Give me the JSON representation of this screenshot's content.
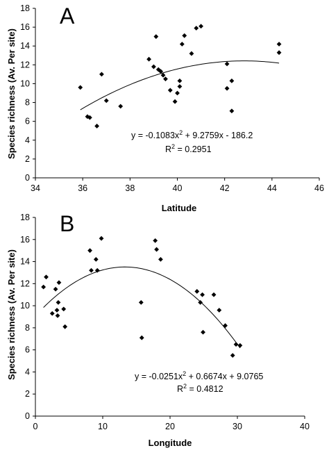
{
  "chart_data": [
    {
      "panel": "A",
      "type": "scatter",
      "xlabel": "Latitude",
      "ylabel": "Species richness (Av. Per site)",
      "xlim": [
        34,
        46
      ],
      "ylim": [
        0,
        18
      ],
      "xticks": [
        "34",
        "36",
        "38",
        "40",
        "42",
        "44",
        "46"
      ],
      "yticks": [
        "0",
        "2",
        "4",
        "6",
        "8",
        "10",
        "12",
        "14",
        "16",
        "18"
      ],
      "equation": {
        "main": "y = -0.1083x",
        "sup": "2",
        "rest": " + 9.2759x - 186.2"
      },
      "r2": {
        "main": "R",
        "sup": "2",
        "rest": " = 0.2951"
      },
      "trendline": {
        "a": -0.1083,
        "b": 9.2759,
        "c": -186.2,
        "x_range": [
          35.9,
          44.3
        ]
      },
      "series": [
        {
          "points": [
            [
              35.9,
              9.6
            ],
            [
              36.2,
              6.5
            ],
            [
              36.3,
              6.4
            ],
            [
              36.6,
              5.5
            ],
            [
              36.8,
              11.0
            ],
            [
              37.0,
              8.2
            ],
            [
              37.6,
              7.6
            ],
            [
              38.8,
              12.6
            ],
            [
              39.0,
              11.8
            ],
            [
              39.1,
              15.0
            ],
            [
              39.2,
              11.5
            ],
            [
              39.3,
              11.3
            ],
            [
              39.4,
              10.9
            ],
            [
              39.5,
              10.5
            ],
            [
              39.7,
              9.3
            ],
            [
              39.9,
              8.1
            ],
            [
              40.0,
              9.0
            ],
            [
              40.1,
              10.3
            ],
            [
              40.2,
              14.2
            ],
            [
              40.3,
              15.1
            ],
            [
              40.6,
              13.2
            ],
            [
              40.8,
              15.9
            ],
            [
              41.0,
              16.1
            ],
            [
              42.1,
              12.1
            ],
            [
              42.1,
              9.5
            ],
            [
              42.3,
              10.3
            ],
            [
              42.3,
              7.1
            ],
            [
              44.3,
              14.2
            ],
            [
              44.3,
              13.3
            ],
            [
              40.1,
              9.7
            ]
          ]
        }
      ]
    },
    {
      "panel": "B",
      "type": "scatter",
      "xlabel": "Longitude",
      "ylabel": "Species richness (Av. Per site)",
      "xlim": [
        0,
        40
      ],
      "ylim": [
        0,
        18
      ],
      "xticks": [
        "0",
        "10",
        "20",
        "30",
        "40"
      ],
      "yticks": [
        "0",
        "2",
        "4",
        "6",
        "8",
        "10",
        "12",
        "14",
        "16",
        "18"
      ],
      "equation": {
        "main": "y = -0.0251x",
        "sup": "2",
        "rest": " + 0.6674x + 9.0765"
      },
      "r2": {
        "main": "R",
        "sup": "2",
        "rest": " = 0.4812"
      },
      "trendline": {
        "a": -0.0251,
        "b": 0.6674,
        "c": 9.0765,
        "x_range": [
          1.2,
          30.4
        ]
      },
      "series": [
        {
          "points": [
            [
              1.2,
              11.7
            ],
            [
              1.6,
              12.6
            ],
            [
              2.5,
              9.3
            ],
            [
              3.0,
              11.5
            ],
            [
              3.2,
              9.6
            ],
            [
              3.3,
              9.1
            ],
            [
              3.4,
              10.3
            ],
            [
              3.5,
              12.1
            ],
            [
              4.2,
              9.7
            ],
            [
              4.4,
              8.1
            ],
            [
              8.1,
              15.0
            ],
            [
              8.3,
              13.2
            ],
            [
              9.0,
              14.2
            ],
            [
              9.2,
              13.2
            ],
            [
              9.8,
              16.1
            ],
            [
              15.7,
              10.3
            ],
            [
              15.8,
              7.1
            ],
            [
              17.8,
              15.9
            ],
            [
              18.0,
              15.1
            ],
            [
              18.6,
              14.2
            ],
            [
              24.0,
              11.3
            ],
            [
              24.5,
              10.3
            ],
            [
              24.8,
              11.0
            ],
            [
              24.9,
              7.6
            ],
            [
              26.5,
              11.0
            ],
            [
              27.3,
              9.6
            ],
            [
              28.2,
              8.2
            ],
            [
              29.3,
              5.5
            ],
            [
              29.8,
              6.5
            ],
            [
              30.4,
              6.4
            ]
          ]
        }
      ]
    }
  ]
}
